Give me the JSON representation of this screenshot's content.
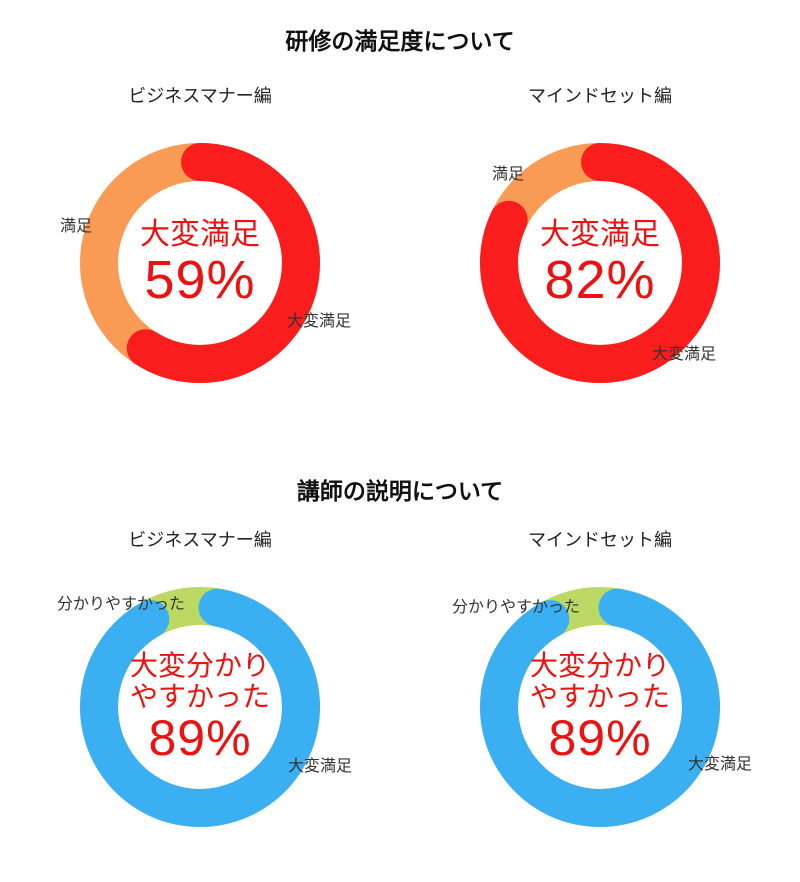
{
  "titles": {
    "section1": "研修の満足度について",
    "section2": "講師の説明について"
  },
  "colors": {
    "very_satisfied_red": "#f91d1d",
    "satisfied_orange": "#f99b55",
    "very_clear_blue": "#3aaff2",
    "clear_green": "#bcd964",
    "center_text_red": "#ee1111",
    "label_gray": "#333333"
  },
  "charts": [
    {
      "subtitle": "ビジネスマナー編",
      "center_line1": "大変満足",
      "center_line2": "",
      "center_value": "59%",
      "label_side": "満足",
      "label_main": "大変満足"
    },
    {
      "subtitle": "マインドセット編",
      "center_line1": "大変満足",
      "center_line2": "",
      "center_value": "82%",
      "label_side": "満足",
      "label_main": "大変満足"
    },
    {
      "subtitle": "ビジネスマナー編",
      "center_line1": "大変分かり",
      "center_line2": "やすかった",
      "center_value": "89%",
      "label_side": "分かりやすかった",
      "label_main": "大変満足"
    },
    {
      "subtitle": "マインドセット編",
      "center_line1": "大変分かり",
      "center_line2": "やすかった",
      "center_value": "89%",
      "label_side": "分かりやすかった",
      "label_main": "大変満足"
    }
  ],
  "chart_data": [
    {
      "type": "pie",
      "variant": "donut",
      "section": "研修の満足度について",
      "title": "ビジネスマナー編",
      "slices": [
        {
          "label": "大変満足",
          "value": 59,
          "color": "#f91d1d"
        },
        {
          "label": "満足",
          "value": 41,
          "color": "#f99b55"
        }
      ],
      "center_text": "大変満足 59%",
      "rotation_deg": 0,
      "legend_position": "around-ring"
    },
    {
      "type": "pie",
      "variant": "donut",
      "section": "研修の満足度について",
      "title": "マインドセット編",
      "slices": [
        {
          "label": "大変満足",
          "value": 82,
          "color": "#f91d1d"
        },
        {
          "label": "満足",
          "value": 18,
          "color": "#f99b55"
        }
      ],
      "center_text": "大変満足 82%",
      "rotation_deg": 0,
      "legend_position": "around-ring"
    },
    {
      "type": "pie",
      "variant": "donut",
      "section": "講師の説明について",
      "title": "ビジネスマナー編",
      "slices": [
        {
          "label": "大変満足",
          "value": 89,
          "color": "#3aaff2"
        },
        {
          "label": "分かりやすかった",
          "value": 11,
          "color": "#bcd964"
        }
      ],
      "center_text": "大変分かりやすかった 89%",
      "rotation_deg": 10,
      "legend_position": "around-ring"
    },
    {
      "type": "pie",
      "variant": "donut",
      "section": "講師の説明について",
      "title": "マインドセット編",
      "slices": [
        {
          "label": "大変満足",
          "value": 89,
          "color": "#3aaff2"
        },
        {
          "label": "分かりやすかった",
          "value": 11,
          "color": "#bcd964"
        }
      ],
      "center_text": "大変分かりやすかった 89%",
      "rotation_deg": 10,
      "legend_position": "around-ring"
    }
  ]
}
